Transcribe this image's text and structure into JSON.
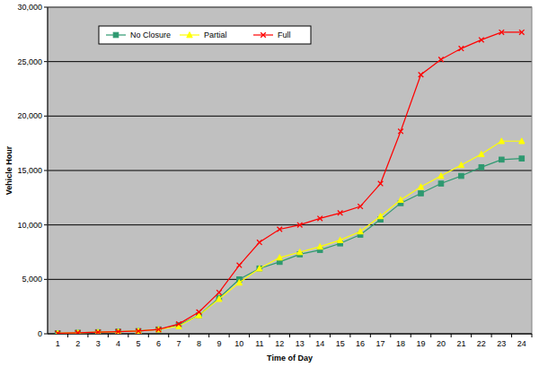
{
  "chart_data": {
    "type": "line",
    "x_label": "Time of Day",
    "y_label": "Vehicle Hour",
    "categories": [
      1,
      2,
      3,
      4,
      5,
      6,
      7,
      8,
      9,
      10,
      11,
      12,
      13,
      14,
      15,
      16,
      17,
      18,
      19,
      20,
      21,
      22,
      23,
      24
    ],
    "series": [
      {
        "name": "No Closure",
        "color": "#2e9970",
        "marker": "square",
        "values": [
          50,
          100,
          150,
          200,
          250,
          400,
          800,
          1700,
          3300,
          5000,
          6000,
          6600,
          7300,
          7700,
          8300,
          9100,
          10500,
          12000,
          12900,
          13800,
          14500,
          15300,
          16000,
          16100
        ]
      },
      {
        "name": "Partial",
        "color": "#ffff00",
        "marker": "triangle",
        "values": [
          50,
          100,
          150,
          200,
          250,
          400,
          700,
          1700,
          3200,
          4700,
          6000,
          7000,
          7500,
          8000,
          8600,
          9400,
          10800,
          12300,
          13500,
          14500,
          15500,
          16500,
          17700,
          17700
        ]
      },
      {
        "name": "Full",
        "color": "#ff0000",
        "marker": "x",
        "values": [
          50,
          100,
          150,
          200,
          250,
          400,
          900,
          2000,
          3800,
          6300,
          8400,
          9600,
          10000,
          10600,
          11100,
          11700,
          13800,
          18600,
          23800,
          25200,
          26200,
          27000,
          27700,
          27700
        ]
      }
    ],
    "ylim": [
      0,
      30000
    ],
    "yticks": [
      0,
      {
        "value": 5000,
        "label": "5,000"
      },
      {
        "value": 10000,
        "label": "10,000"
      },
      {
        "value": 15000,
        "label": "15,000"
      },
      {
        "value": 20000,
        "label": "20,000"
      },
      {
        "value": 25000,
        "label": "25,000"
      },
      {
        "value": 30000,
        "label": "30,000"
      }
    ],
    "grid": true,
    "legend": "top-left"
  }
}
